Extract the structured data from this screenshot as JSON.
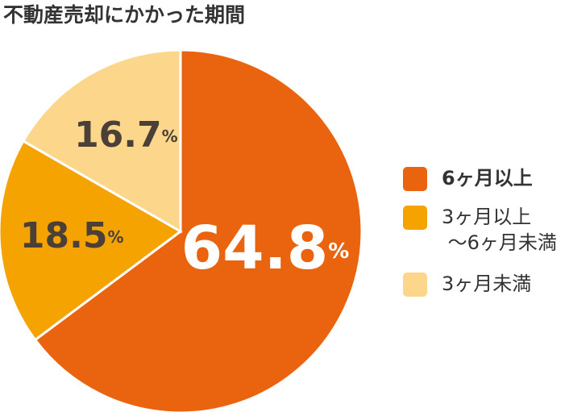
{
  "chart_data": {
    "type": "pie",
    "title": "不動産売却にかかった期間",
    "categories": [
      "6ヶ月以上",
      "3ヶ月以上\n〜6ヶ月未満",
      "3ヶ月未満"
    ],
    "values": [
      64.8,
      18.5,
      16.7
    ],
    "value_labels": [
      "64.8%",
      "18.5%",
      "16.7%"
    ],
    "colors": [
      "#ea6410",
      "#f5a300",
      "#fcd68a"
    ],
    "legend": "right"
  }
}
